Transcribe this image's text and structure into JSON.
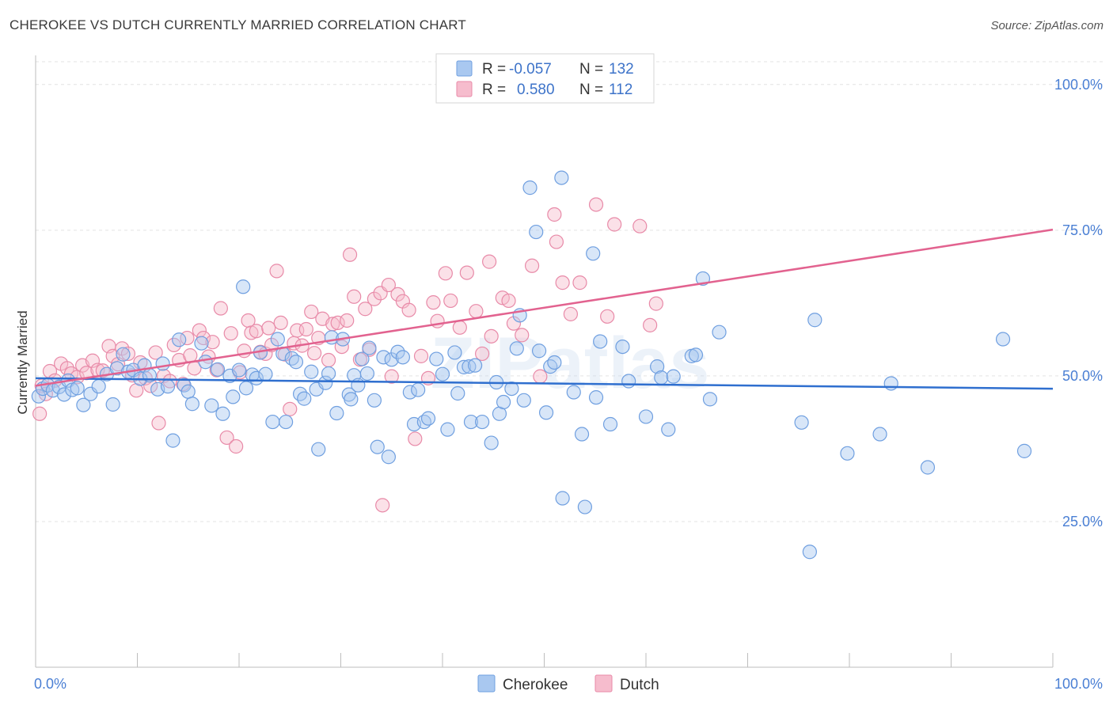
{
  "title": "CHEROKEE VS DUTCH CURRENTLY MARRIED CORRELATION CHART",
  "source": "Source: ZipAtlas.com",
  "watermark": "ZIPatlas",
  "colors": {
    "cherokee_fill": "#a9c8f0",
    "cherokee_stroke": "#6f9fe0",
    "cherokee_line": "#2f6fcf",
    "dutch_fill": "#f6bccd",
    "dutch_stroke": "#e88aa8",
    "dutch_line": "#e2628f",
    "tick_label": "#4a7fd4",
    "grid": "#e3e3e3"
  },
  "legend": {
    "r_label": "R =",
    "n_label": "N =",
    "rows": [
      {
        "series": "Cherokee",
        "r": "-0.057",
        "n": "132"
      },
      {
        "series": "Dutch",
        "r": "0.580",
        "n": "112"
      }
    ]
  },
  "chart_data": {
    "type": "scatter",
    "title": "CHEROKEE VS DUTCH CURRENTLY MARRIED CORRELATION CHART",
    "xlabel": "",
    "ylabel": "Currently Married",
    "xlim": [
      0,
      100
    ],
    "ylim": [
      0,
      105
    ],
    "x_tick_labels": [
      "0.0%",
      "100.0%"
    ],
    "y_ticks": [
      25,
      50,
      75,
      100
    ],
    "y_tick_labels": [
      "25.0%",
      "50.0%",
      "75.0%",
      "100.0%"
    ],
    "grid": true,
    "legend_position": "bottom-center",
    "series": [
      {
        "name": "Cherokee",
        "trend": {
          "x": [
            0,
            100
          ],
          "y": [
            49.6,
            47.8
          ]
        },
        "points": [
          [
            0.3,
            46.5
          ],
          [
            0.7,
            47.8
          ],
          [
            1.2,
            48.4
          ],
          [
            1.7,
            47.5
          ],
          [
            2.3,
            48.1
          ],
          [
            2.8,
            46.8
          ],
          [
            3.2,
            49.2
          ],
          [
            3.6,
            47.6
          ],
          [
            4.1,
            47.9
          ],
          [
            4.7,
            45.0
          ],
          [
            5.4,
            46.9
          ],
          [
            6.2,
            48.2
          ],
          [
            7.0,
            50.3
          ],
          [
            7.6,
            45.1
          ],
          [
            8.0,
            51.3
          ],
          [
            8.6,
            53.7
          ],
          [
            9.1,
            50.7
          ],
          [
            9.6,
            51.0
          ],
          [
            10.3,
            49.5
          ],
          [
            10.7,
            51.8
          ],
          [
            11.2,
            50.1
          ],
          [
            12.0,
            47.7
          ],
          [
            12.5,
            52.1
          ],
          [
            13.0,
            48.2
          ],
          [
            13.5,
            38.9
          ],
          [
            14.1,
            56.2
          ],
          [
            14.6,
            48.4
          ],
          [
            15.0,
            47.3
          ],
          [
            15.4,
            45.2
          ],
          [
            16.3,
            55.6
          ],
          [
            16.7,
            52.4
          ],
          [
            17.3,
            44.9
          ],
          [
            17.9,
            51.1
          ],
          [
            18.4,
            43.5
          ],
          [
            19.1,
            50.0
          ],
          [
            19.4,
            46.4
          ],
          [
            20.0,
            51.0
          ],
          [
            20.4,
            65.3
          ],
          [
            20.7,
            47.9
          ],
          [
            21.3,
            50.2
          ],
          [
            21.7,
            49.6
          ],
          [
            22.1,
            54.0
          ],
          [
            22.6,
            50.3
          ],
          [
            23.3,
            42.1
          ],
          [
            23.8,
            56.3
          ],
          [
            24.3,
            53.8
          ],
          [
            24.6,
            42.1
          ],
          [
            25.2,
            53.0
          ],
          [
            25.6,
            52.4
          ],
          [
            26.0,
            46.9
          ],
          [
            26.4,
            46.1
          ],
          [
            27.1,
            50.7
          ],
          [
            27.6,
            47.7
          ],
          [
            27.8,
            37.4
          ],
          [
            28.5,
            48.8
          ],
          [
            28.8,
            50.4
          ],
          [
            29.1,
            56.6
          ],
          [
            29.6,
            43.6
          ],
          [
            30.2,
            56.3
          ],
          [
            30.8,
            46.8
          ],
          [
            31.3,
            50.1
          ],
          [
            31.7,
            48.4
          ],
          [
            32.1,
            52.9
          ],
          [
            32.6,
            50.4
          ],
          [
            32.8,
            54.8
          ],
          [
            33.3,
            45.8
          ],
          [
            33.6,
            37.8
          ],
          [
            34.2,
            53.2
          ],
          [
            34.7,
            36.1
          ],
          [
            35.0,
            52.8
          ],
          [
            35.6,
            54.1
          ],
          [
            36.1,
            53.2
          ],
          [
            36.8,
            47.2
          ],
          [
            37.2,
            41.7
          ],
          [
            37.6,
            47.6
          ],
          [
            38.2,
            42.1
          ],
          [
            38.6,
            42.7
          ],
          [
            39.4,
            52.9
          ],
          [
            40.0,
            50.3
          ],
          [
            40.5,
            40.8
          ],
          [
            41.2,
            54.0
          ],
          [
            41.5,
            47.0
          ],
          [
            42.1,
            51.5
          ],
          [
            42.6,
            51.6
          ],
          [
            42.8,
            42.1
          ],
          [
            43.2,
            51.8
          ],
          [
            43.9,
            42.1
          ],
          [
            44.8,
            38.5
          ],
          [
            45.3,
            48.9
          ],
          [
            45.6,
            43.5
          ],
          [
            46.0,
            45.5
          ],
          [
            46.8,
            47.8
          ],
          [
            47.3,
            54.7
          ],
          [
            47.6,
            60.4
          ],
          [
            48.0,
            45.8
          ],
          [
            48.6,
            82.3
          ],
          [
            49.2,
            74.7
          ],
          [
            49.5,
            54.3
          ],
          [
            50.2,
            43.7
          ],
          [
            50.6,
            51.6
          ],
          [
            51.0,
            52.3
          ],
          [
            51.7,
            84.0
          ],
          [
            51.8,
            29.0
          ],
          [
            52.9,
            47.2
          ],
          [
            53.7,
            40.0
          ],
          [
            54.0,
            27.5
          ],
          [
            54.8,
            71.0
          ],
          [
            55.1,
            46.3
          ],
          [
            55.5,
            55.9
          ],
          [
            56.5,
            41.7
          ],
          [
            57.7,
            55.0
          ],
          [
            58.3,
            49.1
          ],
          [
            60.0,
            43.0
          ],
          [
            61.1,
            51.6
          ],
          [
            61.5,
            49.7
          ],
          [
            62.2,
            40.8
          ],
          [
            62.7,
            49.9
          ],
          [
            64.5,
            53.4
          ],
          [
            64.9,
            53.6
          ],
          [
            65.6,
            66.7
          ],
          [
            66.3,
            46.0
          ],
          [
            67.2,
            57.5
          ],
          [
            75.3,
            42.0
          ],
          [
            76.6,
            59.6
          ],
          [
            79.8,
            36.7
          ],
          [
            83.0,
            40.0
          ],
          [
            84.1,
            48.7
          ],
          [
            87.7,
            34.3
          ],
          [
            95.1,
            56.3
          ],
          [
            97.2,
            37.1
          ],
          [
            76.1,
            19.8
          ],
          [
            31.0,
            46.0
          ]
        ]
      },
      {
        "name": "Dutch",
        "trend": {
          "x": [
            0,
            100
          ],
          "y": [
            48.3,
            75.1
          ]
        },
        "points": [
          [
            0.4,
            43.5
          ],
          [
            0.6,
            48.3
          ],
          [
            1.0,
            46.9
          ],
          [
            1.4,
            50.8
          ],
          [
            1.9,
            49.2
          ],
          [
            2.5,
            52.1
          ],
          [
            3.1,
            51.3
          ],
          [
            3.5,
            50.4
          ],
          [
            4.1,
            49.8
          ],
          [
            4.6,
            51.8
          ],
          [
            5.0,
            50.5
          ],
          [
            5.6,
            52.6
          ],
          [
            6.1,
            51.0
          ],
          [
            6.6,
            50.9
          ],
          [
            7.2,
            55.1
          ],
          [
            7.6,
            53.4
          ],
          [
            8.1,
            52.0
          ],
          [
            8.5,
            54.7
          ],
          [
            9.1,
            53.8
          ],
          [
            9.5,
            50.1
          ],
          [
            9.9,
            47.5
          ],
          [
            10.3,
            52.3
          ],
          [
            10.8,
            49.6
          ],
          [
            11.3,
            48.3
          ],
          [
            11.8,
            54.0
          ],
          [
            12.1,
            41.9
          ],
          [
            12.6,
            50.0
          ],
          [
            13.2,
            49.1
          ],
          [
            13.6,
            55.3
          ],
          [
            14.1,
            52.7
          ],
          [
            14.5,
            48.6
          ],
          [
            14.9,
            56.5
          ],
          [
            15.2,
            53.5
          ],
          [
            15.6,
            51.3
          ],
          [
            16.1,
            57.8
          ],
          [
            16.5,
            56.5
          ],
          [
            17.0,
            53.3
          ],
          [
            17.4,
            55.8
          ],
          [
            17.8,
            51.0
          ],
          [
            18.2,
            61.6
          ],
          [
            18.8,
            39.4
          ],
          [
            19.2,
            57.3
          ],
          [
            19.7,
            37.9
          ],
          [
            20.1,
            50.6
          ],
          [
            20.5,
            54.3
          ],
          [
            20.9,
            59.5
          ],
          [
            21.2,
            57.4
          ],
          [
            21.7,
            57.7
          ],
          [
            22.1,
            54.1
          ],
          [
            22.6,
            53.8
          ],
          [
            22.9,
            58.2
          ],
          [
            23.2,
            55.3
          ],
          [
            23.7,
            68.0
          ],
          [
            24.1,
            59.1
          ],
          [
            24.5,
            53.7
          ],
          [
            25.0,
            44.3
          ],
          [
            25.4,
            55.6
          ],
          [
            25.7,
            57.8
          ],
          [
            26.2,
            55.2
          ],
          [
            26.6,
            58.0
          ],
          [
            27.1,
            61.0
          ],
          [
            27.4,
            53.9
          ],
          [
            27.8,
            56.5
          ],
          [
            28.2,
            59.8
          ],
          [
            28.8,
            52.7
          ],
          [
            29.2,
            58.9
          ],
          [
            29.7,
            59.1
          ],
          [
            30.1,
            55.0
          ],
          [
            30.6,
            59.5
          ],
          [
            30.9,
            70.8
          ],
          [
            31.3,
            63.6
          ],
          [
            31.9,
            52.8
          ],
          [
            32.4,
            61.5
          ],
          [
            32.8,
            54.5
          ],
          [
            33.3,
            63.2
          ],
          [
            33.9,
            64.2
          ],
          [
            34.1,
            27.8
          ],
          [
            34.7,
            65.6
          ],
          [
            35.0,
            49.9
          ],
          [
            35.6,
            64.0
          ],
          [
            36.1,
            62.8
          ],
          [
            36.7,
            61.3
          ],
          [
            37.3,
            39.2
          ],
          [
            37.9,
            53.4
          ],
          [
            38.6,
            49.6
          ],
          [
            39.1,
            62.6
          ],
          [
            39.5,
            59.4
          ],
          [
            40.3,
            67.6
          ],
          [
            40.8,
            62.9
          ],
          [
            41.7,
            58.3
          ],
          [
            42.4,
            67.7
          ],
          [
            43.3,
            61.1
          ],
          [
            43.9,
            53.8
          ],
          [
            44.6,
            69.6
          ],
          [
            44.8,
            56.8
          ],
          [
            45.9,
            63.4
          ],
          [
            46.5,
            62.9
          ],
          [
            47.0,
            59.0
          ],
          [
            47.8,
            57.0
          ],
          [
            48.8,
            68.9
          ],
          [
            49.6,
            49.9
          ],
          [
            51.0,
            77.7
          ],
          [
            51.2,
            73.0
          ],
          [
            51.8,
            66.0
          ],
          [
            52.6,
            60.6
          ],
          [
            53.5,
            66.0
          ],
          [
            55.1,
            79.4
          ],
          [
            56.2,
            60.2
          ],
          [
            56.9,
            76.0
          ],
          [
            59.4,
            75.7
          ],
          [
            60.4,
            58.7
          ],
          [
            61.0,
            62.4
          ]
        ]
      }
    ]
  }
}
